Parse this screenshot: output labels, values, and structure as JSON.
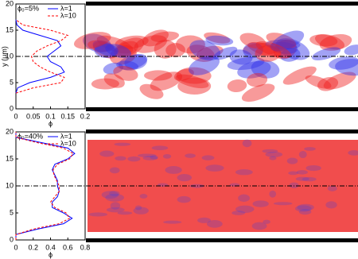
{
  "chart_data": [
    {
      "type": "line",
      "orientation": "vertical",
      "annotation": "ϕ₀=5%",
      "xlabel": "ϕ",
      "ylabel": "y (μm)",
      "x": [
        3,
        4,
        5,
        6,
        7,
        8,
        9,
        10,
        11,
        12,
        13,
        14,
        15,
        16,
        17
      ],
      "series": [
        {
          "name": "λ=1",
          "color": "#0000ff",
          "dash": "solid",
          "values": [
            0,
            0.005,
            0.04,
            0.1,
            0.14,
            0.13,
            0.1,
            0.09,
            0.11,
            0.13,
            0.12,
            0.07,
            0.02,
            0.003,
            0
          ]
        },
        {
          "name": "λ=10",
          "color": "#ff0000",
          "dash": "dashed",
          "values": [
            0,
            0.05,
            0.13,
            0.14,
            0.1,
            0.07,
            0.05,
            0.045,
            0.06,
            0.09,
            0.13,
            0.15,
            0.1,
            0.02,
            0
          ]
        }
      ],
      "xlim": [
        0,
        0.2
      ],
      "xticks": [
        0,
        0.05,
        0.1,
        0.15,
        0.2
      ],
      "ylim": [
        0,
        20
      ],
      "yticks": [
        0,
        5,
        10,
        15,
        20
      ],
      "hline": 10
    },
    {
      "type": "line",
      "orientation": "vertical",
      "annotation": "ϕ₀=40%",
      "xlabel": "ϕ",
      "x": [
        0,
        1,
        2,
        3,
        4,
        5,
        6,
        7,
        8,
        9,
        10,
        11,
        12,
        13,
        14,
        15,
        16,
        17,
        18,
        19,
        20
      ],
      "series": [
        {
          "name": "λ=1",
          "color": "#0000ff",
          "dash": "solid",
          "values": [
            0,
            0,
            0.25,
            0.55,
            0.65,
            0.55,
            0.42,
            0.42,
            0.48,
            0.5,
            0.48,
            0.48,
            0.45,
            0.42,
            0.45,
            0.6,
            0.68,
            0.6,
            0.3,
            0,
            0
          ]
        },
        {
          "name": "λ=10",
          "color": "#ff0000",
          "dash": "dashed",
          "values": [
            0,
            0,
            0.2,
            0.5,
            0.62,
            0.58,
            0.45,
            0.4,
            0.45,
            0.5,
            0.5,
            0.47,
            0.44,
            0.43,
            0.48,
            0.62,
            0.66,
            0.55,
            0.25,
            0,
            0
          ]
        }
      ],
      "xlim": [
        0,
        0.8
      ],
      "xticks": [
        0,
        0.2,
        0.4,
        0.6,
        0.8
      ],
      "ylim": [
        0,
        20
      ],
      "yticks": [
        0,
        5,
        10,
        15,
        20
      ],
      "hline": 10
    }
  ]
}
